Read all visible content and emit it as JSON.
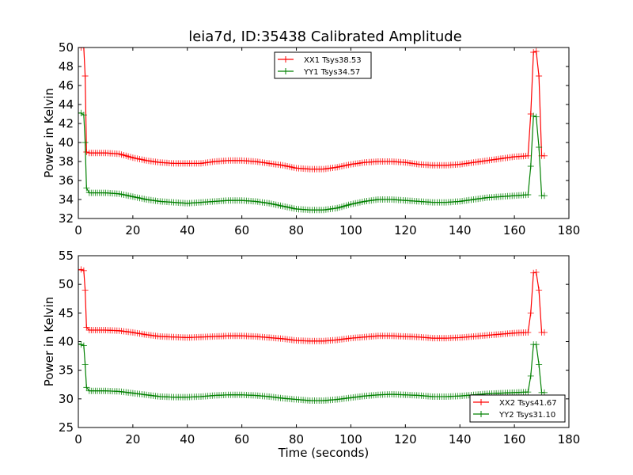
{
  "figure": {
    "title": "leia7d, ID:35438 Calibrated Amplitude"
  },
  "chart_data": [
    {
      "type": "line",
      "ylabel": "Power in Kelvin",
      "xlabel": "",
      "xlim": [
        0,
        180
      ],
      "ylim": [
        32,
        50
      ],
      "xticks": [
        "0",
        "20",
        "40",
        "60",
        "80",
        "100",
        "120",
        "140",
        "160",
        "180"
      ],
      "yticks": [
        "32",
        "34",
        "36",
        "38",
        "40",
        "42",
        "44",
        "46",
        "48",
        "50"
      ],
      "legend_position": "top-center",
      "series": [
        {
          "name": "XX1 Tsys38.53",
          "color": "#ff0000",
          "x": [
            0,
            1,
            2,
            2.5,
            3,
            4,
            10,
            15,
            20,
            25,
            30,
            35,
            40,
            45,
            50,
            55,
            60,
            65,
            70,
            75,
            80,
            85,
            90,
            95,
            100,
            105,
            110,
            115,
            120,
            125,
            130,
            135,
            140,
            145,
            150,
            155,
            160,
            165,
            166,
            167,
            168,
            169,
            170,
            171
          ],
          "y": [
            50,
            50,
            50,
            47,
            39.0,
            38.9,
            38.9,
            38.8,
            38.4,
            38.1,
            37.9,
            37.8,
            37.8,
            37.8,
            38.0,
            38.1,
            38.1,
            38.0,
            37.8,
            37.6,
            37.3,
            37.2,
            37.2,
            37.4,
            37.7,
            37.9,
            38.0,
            38.0,
            37.9,
            37.7,
            37.6,
            37.6,
            37.7,
            37.9,
            38.1,
            38.3,
            38.5,
            38.6,
            43,
            49.5,
            49.6,
            47,
            38.6,
            38.6
          ]
        },
        {
          "name": "YY1 Tsys34.57",
          "color": "#008000",
          "x": [
            0,
            1,
            2,
            2.5,
            3,
            4,
            10,
            15,
            20,
            25,
            30,
            35,
            40,
            45,
            50,
            55,
            60,
            65,
            70,
            75,
            80,
            85,
            90,
            95,
            100,
            105,
            110,
            115,
            120,
            125,
            130,
            135,
            140,
            145,
            150,
            155,
            160,
            165,
            166,
            167,
            168,
            169,
            170,
            171
          ],
          "y": [
            43.1,
            43.1,
            42.9,
            40,
            35.2,
            34.7,
            34.7,
            34.6,
            34.3,
            34.0,
            33.8,
            33.7,
            33.6,
            33.7,
            33.8,
            33.9,
            33.9,
            33.8,
            33.6,
            33.3,
            33.0,
            32.9,
            32.9,
            33.1,
            33.5,
            33.8,
            34.0,
            34.0,
            33.9,
            33.8,
            33.7,
            33.7,
            33.8,
            34.0,
            34.2,
            34.3,
            34.4,
            34.5,
            37.5,
            42.8,
            42.7,
            39.5,
            34.4,
            34.4
          ]
        }
      ]
    },
    {
      "type": "line",
      "ylabel": "Power in Kelvin",
      "xlabel": "Time (seconds)",
      "xlim": [
        0,
        180
      ],
      "ylim": [
        25,
        55
      ],
      "xticks": [
        "0",
        "20",
        "40",
        "60",
        "80",
        "100",
        "120",
        "140",
        "160",
        "180"
      ],
      "yticks": [
        "25",
        "30",
        "35",
        "40",
        "45",
        "50",
        "55"
      ],
      "legend_position": "bottom-right",
      "series": [
        {
          "name": "XX2 Tsys41.67",
          "color": "#ff0000",
          "x": [
            0,
            1,
            2,
            2.5,
            3,
            4,
            10,
            15,
            20,
            25,
            30,
            35,
            40,
            45,
            50,
            55,
            60,
            65,
            70,
            75,
            80,
            85,
            90,
            95,
            100,
            105,
            110,
            115,
            120,
            125,
            130,
            135,
            140,
            145,
            150,
            155,
            160,
            165,
            166,
            167,
            168,
            169,
            170,
            171
          ],
          "y": [
            52.5,
            52.6,
            52.4,
            49,
            42.5,
            42.0,
            42.0,
            41.9,
            41.6,
            41.2,
            40.9,
            40.8,
            40.7,
            40.8,
            40.9,
            41.0,
            41.0,
            40.9,
            40.7,
            40.5,
            40.2,
            40.1,
            40.1,
            40.3,
            40.6,
            40.8,
            41.0,
            41.0,
            40.9,
            40.8,
            40.6,
            40.6,
            40.7,
            40.9,
            41.1,
            41.3,
            41.5,
            41.6,
            45,
            52.0,
            52.1,
            49,
            41.6,
            41.6
          ]
        },
        {
          "name": "YY2 Tsys31.10",
          "color": "#008000",
          "x": [
            0,
            1,
            2,
            2.5,
            3,
            4,
            10,
            15,
            20,
            25,
            30,
            35,
            40,
            45,
            50,
            55,
            60,
            65,
            70,
            75,
            80,
            85,
            90,
            95,
            100,
            105,
            110,
            115,
            120,
            125,
            130,
            135,
            140,
            145,
            150,
            155,
            160,
            165,
            166,
            167,
            168,
            169,
            170,
            171
          ],
          "y": [
            39.6,
            39.5,
            39.3,
            36,
            32.0,
            31.4,
            31.4,
            31.3,
            31.0,
            30.7,
            30.4,
            30.3,
            30.3,
            30.4,
            30.6,
            30.7,
            30.7,
            30.6,
            30.4,
            30.1,
            29.9,
            29.7,
            29.7,
            29.9,
            30.2,
            30.5,
            30.7,
            30.8,
            30.7,
            30.6,
            30.4,
            30.4,
            30.5,
            30.7,
            30.9,
            31.0,
            31.1,
            31.2,
            34,
            39.5,
            39.5,
            36,
            31.1,
            31.1
          ]
        }
      ]
    }
  ]
}
